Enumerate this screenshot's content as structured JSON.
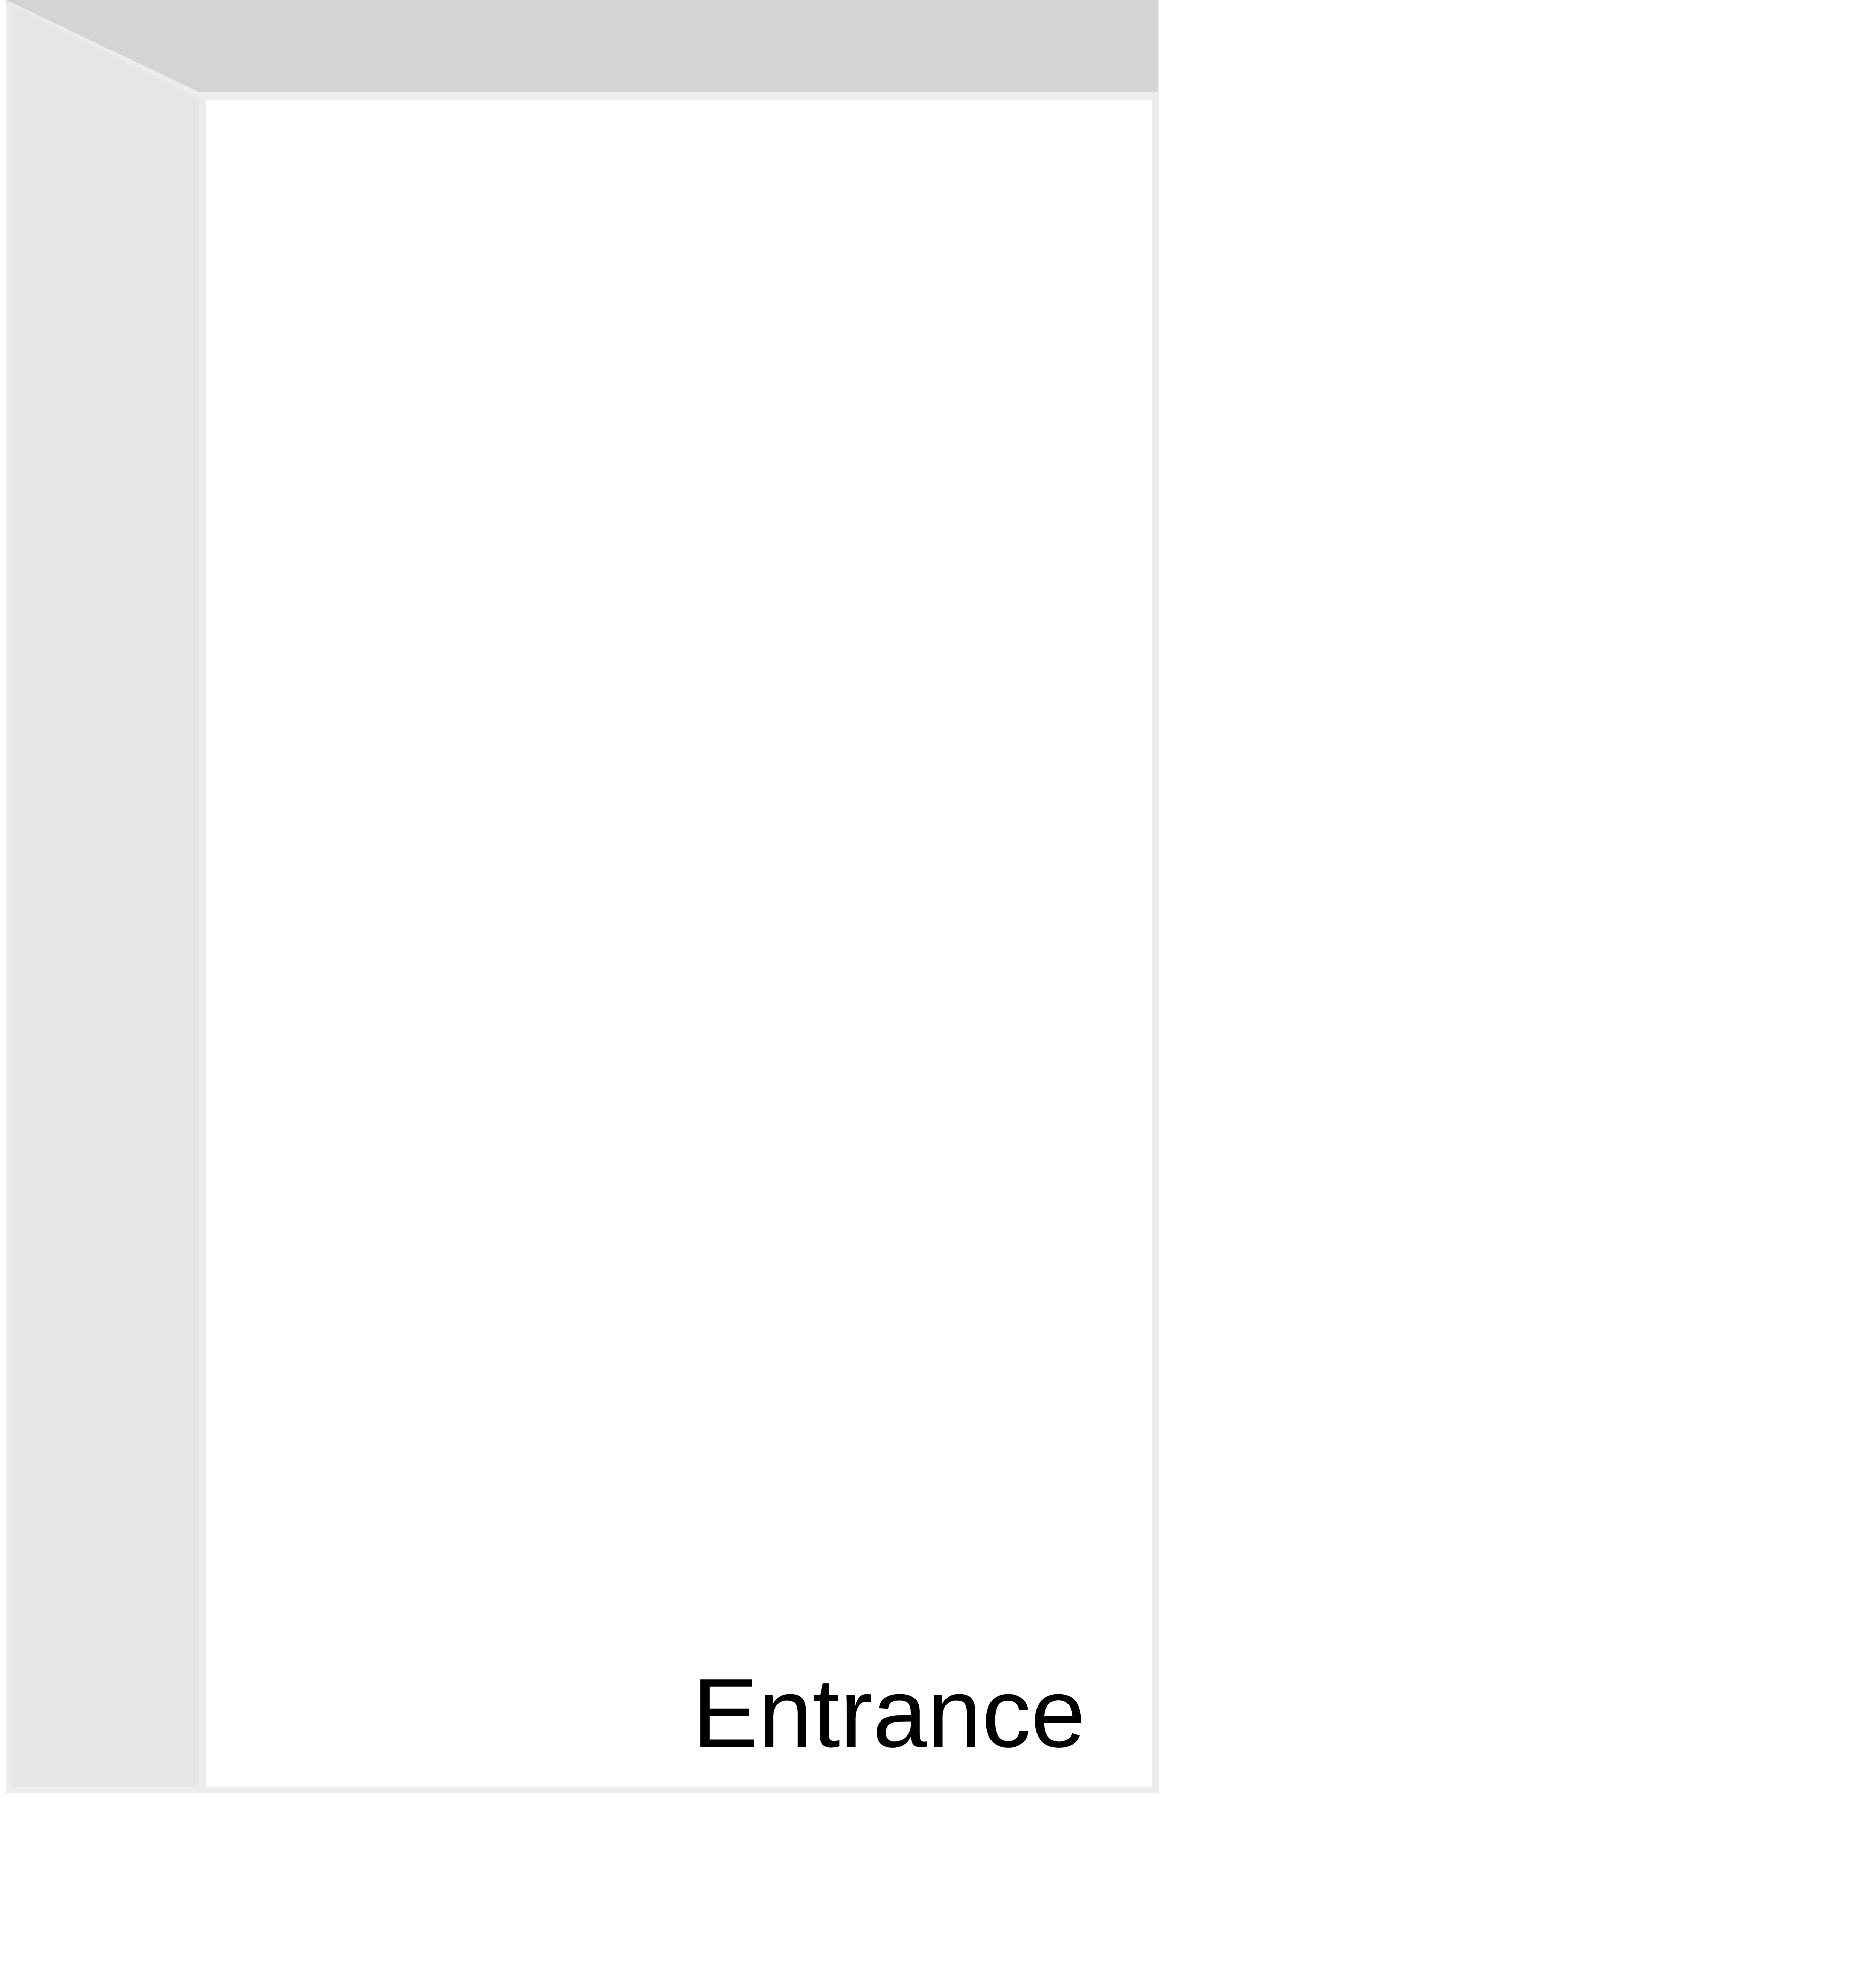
{
  "diagram": {
    "label": "Entrance",
    "colors": {
      "background": "#ffffff",
      "ceiling": "#d4d4d4",
      "left_wall": "#e6e6e6",
      "frame": "#ececec",
      "opening": "#ffffff",
      "text": "#000000"
    }
  }
}
